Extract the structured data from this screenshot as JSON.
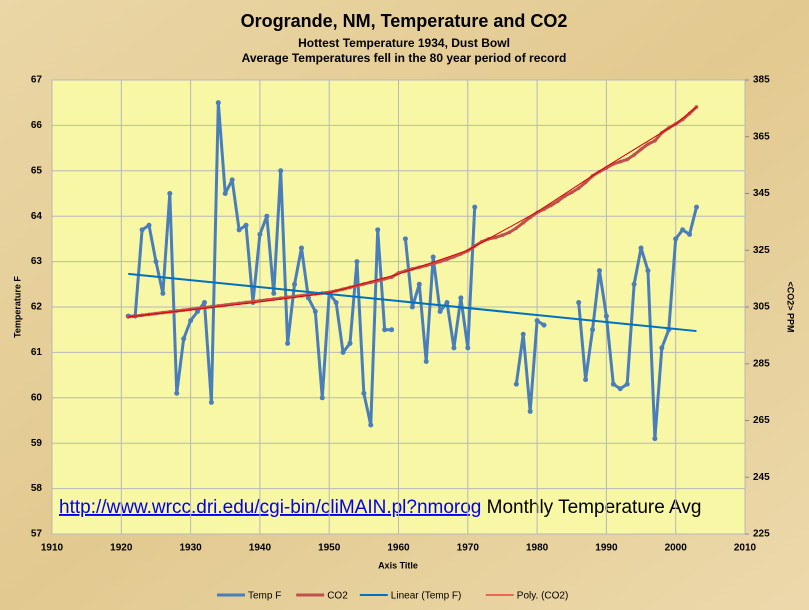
{
  "chart_data": {
    "type": "line",
    "title": "Orogrande, NM, Temperature and CO2",
    "subtitle": [
      "Hottest Temperature 1934, Dust Bowl",
      "Average Temperatures fell in the 80 year period of record"
    ],
    "x_label": "Axis Title",
    "y_label": "Temperature F",
    "y2_label": "<CO2> PPM",
    "annotation": {
      "link": "http://www.wrcc.dri.edu/cgi-bin/cliMAIN.pl?nmorog",
      "text": "Monthly Temperature Avg"
    },
    "x": [
      1921,
      1922,
      1923,
      1924,
      1925,
      1926,
      1927,
      1928,
      1929,
      1930,
      1931,
      1932,
      1933,
      1934,
      1935,
      1936,
      1937,
      1938,
      1939,
      1940,
      1941,
      1942,
      1943,
      1944,
      1945,
      1946,
      1947,
      1948,
      1949,
      1950,
      1951,
      1952,
      1953,
      1954,
      1955,
      1956,
      1957,
      1958,
      1959,
      1960,
      1961,
      1962,
      1963,
      1964,
      1965,
      1966,
      1967,
      1968,
      1969,
      1970,
      1971,
      1972,
      1973,
      1974,
      1975,
      1976,
      1977,
      1978,
      1979,
      1980,
      1981,
      1982,
      1983,
      1984,
      1985,
      1986,
      1987,
      1988,
      1989,
      1990,
      1991,
      1992,
      1993,
      1994,
      1995,
      1996,
      1997,
      1998,
      1999,
      2000,
      2001,
      2002,
      2003
    ],
    "xlim": [
      1910,
      2010
    ],
    "xticks": [
      1910,
      1920,
      1930,
      1940,
      1950,
      1960,
      1970,
      1980,
      1990,
      2000,
      2010
    ],
    "ylim": [
      57,
      67
    ],
    "yticks": [
      57,
      58,
      59,
      60,
      61,
      62,
      63,
      64,
      65,
      66,
      67
    ],
    "y2lim": [
      225,
      385
    ],
    "y2ticks": [
      225,
      245,
      265,
      285,
      305,
      325,
      345,
      365,
      385
    ],
    "grid": true,
    "legend": "bottom",
    "series": [
      {
        "name": "Temp F",
        "color": "#4a7ebb",
        "line_width": 3,
        "marker": true,
        "axis": "y",
        "values": [
          61.8,
          61.8,
          63.7,
          63.8,
          63.0,
          62.3,
          64.5,
          60.1,
          61.3,
          61.7,
          61.9,
          62.1,
          59.9,
          66.5,
          64.5,
          64.8,
          63.7,
          63.8,
          62.1,
          63.6,
          64.0,
          62.3,
          65.0,
          61.2,
          62.5,
          63.3,
          62.2,
          61.9,
          60.0,
          62.3,
          62.1,
          61.0,
          61.2,
          63.0,
          60.1,
          59.4,
          63.7,
          61.5,
          61.5,
          null,
          63.5,
          62.0,
          62.5,
          60.8,
          63.1,
          61.9,
          62.1,
          61.1,
          62.2,
          61.1,
          64.2,
          null,
          null,
          null,
          null,
          null,
          60.3,
          61.4,
          59.7,
          61.7,
          61.6,
          null,
          null,
          null,
          null,
          62.1,
          60.4,
          61.5,
          62.8,
          61.8,
          60.3,
          60.2,
          60.3,
          62.5,
          63.3,
          62.8,
          59.1,
          61.1,
          61.5,
          63.5,
          63.7,
          63.6,
          64.2
        ]
      },
      {
        "name": "CO2",
        "color": "#c0504d",
        "line_width": 3,
        "marker": true,
        "axis": "y2",
        "values": [
          301.5,
          301.8,
          302.1,
          302.4,
          302.7,
          303.0,
          303.3,
          303.6,
          303.9,
          304.2,
          304.5,
          304.8,
          305.1,
          305.4,
          305.7,
          306.0,
          306.3,
          306.6,
          306.9,
          307.2,
          307.5,
          307.8,
          308.1,
          308.4,
          308.7,
          309.0,
          309.3,
          309.6,
          309.9,
          310.2,
          310.7,
          311.3,
          311.9,
          312.5,
          313.1,
          313.7,
          314.3,
          314.9,
          315.5,
          317.0,
          317.7,
          318.4,
          319.0,
          319.6,
          320.3,
          321.0,
          321.8,
          322.7,
          323.7,
          324.8,
          326.5,
          328.0,
          329.0,
          329.5,
          330.3,
          331.3,
          332.8,
          334.7,
          336.6,
          338.3,
          339.5,
          340.8,
          342.3,
          344.1,
          345.4,
          346.9,
          348.9,
          351.2,
          352.7,
          354.0,
          355.4,
          356.2,
          357.0,
          358.6,
          360.6,
          362.4,
          363.6,
          366.4,
          368.1,
          369.5,
          371.1,
          373.2,
          375.5
        ]
      },
      {
        "name": "Linear (Temp F)",
        "color": "#0070c0",
        "line_width": 2,
        "marker": false,
        "axis": "y",
        "x": [
          1921,
          2003
        ],
        "values": [
          62.73,
          61.47
        ]
      },
      {
        "name": "Poly. (CO2)",
        "color": "#e00000",
        "line_width": 1,
        "marker": false,
        "axis": "y2",
        "x": [
          1921,
          1930,
          1940,
          1950,
          1960,
          1970,
          1980,
          1990,
          2000,
          2003
        ],
        "values": [
          301.5,
          304.0,
          306.8,
          310.0,
          316.6,
          325.0,
          338.5,
          354.5,
          369.5,
          375.5
        ]
      }
    ]
  }
}
